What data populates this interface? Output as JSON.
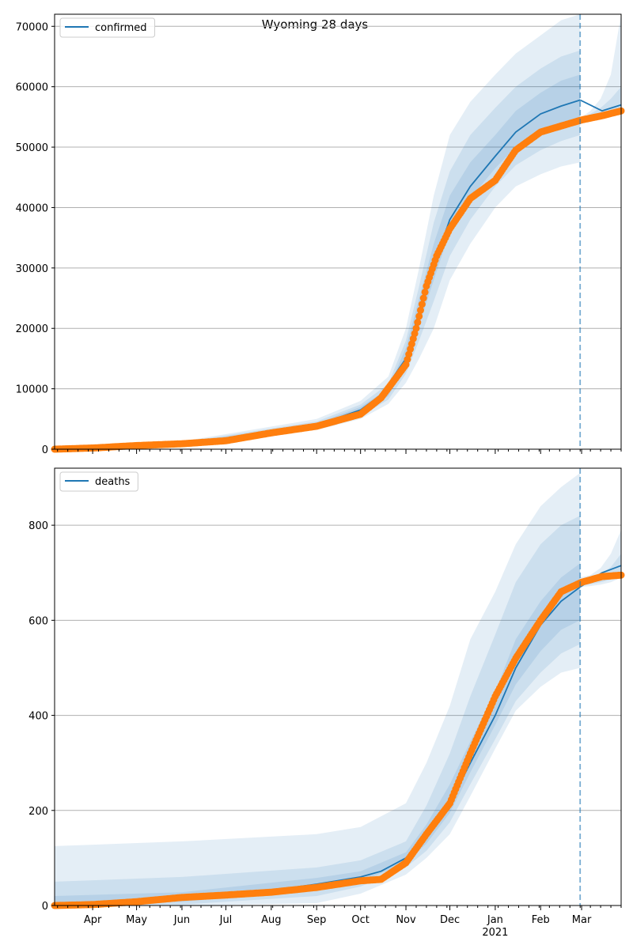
{
  "figure": {
    "title": "Wyoming 28 days"
  },
  "colors": {
    "model": "#1f77b4",
    "observed": "#ff7f0e",
    "band": "#1f77b4",
    "grid": "#b0b0b0",
    "forecast_line": "#1f77b4"
  },
  "x_axis": {
    "month_ticks": [
      {
        "label": "Apr",
        "date": "2020-04-01"
      },
      {
        "label": "May",
        "date": "2020-05-01"
      },
      {
        "label": "Jun",
        "date": "2020-06-01"
      },
      {
        "label": "Jul",
        "date": "2020-07-01"
      },
      {
        "label": "Aug",
        "date": "2020-08-01"
      },
      {
        "label": "Sep",
        "date": "2020-09-01"
      },
      {
        "label": "Oct",
        "date": "2020-10-01"
      },
      {
        "label": "Nov",
        "date": "2020-11-01"
      },
      {
        "label": "Dec",
        "date": "2020-12-01"
      },
      {
        "label": "Jan",
        "date": "2021-01-01"
      },
      {
        "label": "Feb",
        "date": "2021-02-01"
      },
      {
        "label": "Mar",
        "date": "2021-03-01"
      }
    ],
    "year_label": "2021"
  },
  "chart_data": [
    {
      "type": "line",
      "legend": "confirmed",
      "legend_position": "top-left",
      "grid": "horizontal",
      "xlim": [
        "2020-03-06",
        "2021-03-28"
      ],
      "ylim": [
        0,
        72000
      ],
      "yticks": [
        0,
        10000,
        20000,
        30000,
        40000,
        50000,
        60000,
        70000
      ],
      "forecast_start": "2021-02-28",
      "model": {
        "x": [
          "2020-03-06",
          "2020-04-01",
          "2020-05-01",
          "2020-06-01",
          "2020-07-01",
          "2020-08-01",
          "2020-09-01",
          "2020-10-01",
          "2020-10-15",
          "2020-11-01",
          "2020-11-15",
          "2020-12-01",
          "2020-12-15",
          "2021-01-01",
          "2021-01-15",
          "2021-02-01",
          "2021-02-15",
          "2021-02-28",
          "2021-03-15",
          "2021-03-28"
        ],
        "y": [
          0,
          200,
          600,
          900,
          1500,
          2800,
          4000,
          6500,
          9000,
          15000,
          27000,
          38000,
          43500,
          48500,
          52500,
          55500,
          56800,
          57800,
          56000,
          57000
        ]
      },
      "observed": {
        "x": [
          "2020-03-06",
          "2020-04-01",
          "2020-05-01",
          "2020-06-01",
          "2020-07-01",
          "2020-08-01",
          "2020-09-01",
          "2020-10-01",
          "2020-10-15",
          "2020-11-01",
          "2020-11-08",
          "2020-11-15",
          "2020-11-22",
          "2020-12-01",
          "2020-12-15",
          "2021-01-01",
          "2021-01-15",
          "2021-02-01",
          "2021-02-15",
          "2021-03-01",
          "2021-03-15",
          "2021-03-28"
        ],
        "y": [
          0,
          200,
          600,
          900,
          1400,
          2700,
          3800,
          5800,
          8500,
          14000,
          20000,
          27000,
          32000,
          36500,
          41500,
          44500,
          49500,
          52500,
          53500,
          54500,
          55200,
          56000
        ]
      },
      "bands": [
        {
          "x": [
            "2020-03-06",
            "2020-06-01",
            "2020-09-01",
            "2020-10-01",
            "2020-10-20",
            "2020-11-01",
            "2020-11-10",
            "2020-11-20",
            "2020-12-01",
            "2020-12-15",
            "2021-01-01",
            "2021-01-15",
            "2021-02-01",
            "2021-02-15",
            "2021-02-28"
          ],
          "lo": [
            0,
            500,
            3200,
            5000,
            7500,
            11000,
            15000,
            20000,
            28000,
            34000,
            40000,
            43500,
            45500,
            46800,
            47500
          ],
          "hi": [
            0,
            1300,
            5000,
            8000,
            12000,
            20000,
            30000,
            42000,
            52000,
            57500,
            62000,
            65500,
            68500,
            71000,
            72000
          ]
        },
        {
          "x": [
            "2020-03-06",
            "2020-06-01",
            "2020-09-01",
            "2020-10-01",
            "2020-10-20",
            "2020-11-01",
            "2020-11-10",
            "2020-11-20",
            "2020-12-01",
            "2020-12-15",
            "2021-01-01",
            "2021-01-15",
            "2021-02-01",
            "2021-02-15",
            "2021-02-28"
          ],
          "lo": [
            0,
            650,
            3500,
            5500,
            8200,
            12500,
            18000,
            24500,
            32000,
            38000,
            43500,
            47000,
            49500,
            51000,
            52000
          ],
          "hi": [
            0,
            1150,
            4600,
            7400,
            10800,
            18000,
            27000,
            37500,
            46000,
            52000,
            56500,
            60000,
            63000,
            65000,
            66000
          ]
        },
        {
          "x": [
            "2020-03-06",
            "2020-06-01",
            "2020-09-01",
            "2020-10-01",
            "2020-10-20",
            "2020-11-01",
            "2020-11-10",
            "2020-11-20",
            "2020-12-01",
            "2020-12-15",
            "2021-01-01",
            "2021-01-15",
            "2021-02-01",
            "2021-02-15",
            "2021-02-28"
          ],
          "lo": [
            0,
            780,
            3800,
            6000,
            8800,
            13800,
            20500,
            28000,
            36000,
            41500,
            46500,
            50000,
            52500,
            54000,
            54500
          ],
          "hi": [
            0,
            1020,
            4300,
            7000,
            10000,
            16800,
            25000,
            34000,
            42000,
            47500,
            52000,
            56000,
            59000,
            61000,
            62000
          ]
        }
      ],
      "forecast_bands": [
        {
          "x": [
            "2021-02-28",
            "2021-03-07",
            "2021-03-14",
            "2021-03-21",
            "2021-03-28"
          ],
          "lo": [
            54000,
            54400,
            55000,
            55400,
            55800
          ],
          "hi": [
            54800,
            56000,
            58000,
            62000,
            72000
          ]
        },
        {
          "x": [
            "2021-02-28",
            "2021-03-07",
            "2021-03-14",
            "2021-03-21",
            "2021-03-28"
          ],
          "lo": [
            54200,
            54600,
            55100,
            55600,
            56000
          ],
          "hi": [
            54700,
            55500,
            56500,
            58000,
            60000
          ]
        }
      ]
    },
    {
      "type": "line",
      "legend": "deaths",
      "legend_position": "top-left",
      "grid": "horizontal",
      "xlim": [
        "2020-03-06",
        "2021-03-28"
      ],
      "ylim": [
        0,
        920
      ],
      "yticks": [
        0,
        200,
        400,
        600,
        800
      ],
      "forecast_start": "2021-02-28",
      "model": {
        "x": [
          "2020-03-06",
          "2020-04-01",
          "2020-05-01",
          "2020-06-01",
          "2020-07-01",
          "2020-08-01",
          "2020-09-01",
          "2020-10-01",
          "2020-10-15",
          "2020-11-01",
          "2020-11-15",
          "2020-12-01",
          "2020-12-15",
          "2021-01-01",
          "2021-01-15",
          "2021-02-01",
          "2021-02-15",
          "2021-02-28",
          "2021-03-15",
          "2021-03-28"
        ],
        "y": [
          0,
          2,
          8,
          15,
          22,
          32,
          45,
          60,
          72,
          100,
          145,
          215,
          300,
          400,
          500,
          590,
          640,
          670,
          700,
          715
        ]
      },
      "observed": {
        "x": [
          "2020-03-06",
          "2020-04-01",
          "2020-05-01",
          "2020-06-01",
          "2020-07-01",
          "2020-08-01",
          "2020-09-01",
          "2020-10-01",
          "2020-10-15",
          "2020-11-01",
          "2020-11-15",
          "2020-12-01",
          "2020-12-15",
          "2021-01-01",
          "2021-01-15",
          "2021-02-01",
          "2021-02-15",
          "2021-03-01",
          "2021-03-15",
          "2021-03-28"
        ],
        "y": [
          0,
          2,
          8,
          17,
          22,
          28,
          38,
          52,
          55,
          90,
          150,
          215,
          320,
          440,
          520,
          600,
          660,
          680,
          692,
          695
        ]
      },
      "bands": [
        {
          "x": [
            "2020-03-06",
            "2020-06-01",
            "2020-09-01",
            "2020-10-01",
            "2020-11-01",
            "2020-11-15",
            "2020-12-01",
            "2020-12-15",
            "2021-01-01",
            "2021-01-15",
            "2021-02-01",
            "2021-02-15",
            "2021-02-28"
          ],
          "lo": [
            0,
            0,
            5,
            25,
            65,
            100,
            150,
            230,
            330,
            410,
            460,
            490,
            500
          ],
          "hi": [
            125,
            135,
            150,
            165,
            215,
            300,
            420,
            560,
            660,
            760,
            840,
            880,
            910
          ]
        },
        {
          "x": [
            "2020-03-06",
            "2020-06-01",
            "2020-09-01",
            "2020-10-01",
            "2020-11-01",
            "2020-11-15",
            "2020-12-01",
            "2020-12-15",
            "2021-01-01",
            "2021-01-15",
            "2021-02-01",
            "2021-02-15",
            "2021-02-28"
          ],
          "lo": [
            0,
            2,
            20,
            40,
            80,
            115,
            175,
            255,
            350,
            430,
            490,
            530,
            550
          ],
          "hi": [
            50,
            60,
            80,
            95,
            135,
            210,
            320,
            440,
            570,
            680,
            760,
            800,
            820
          ]
        },
        {
          "x": [
            "2020-03-06",
            "2020-06-01",
            "2020-09-01",
            "2020-10-01",
            "2020-11-01",
            "2020-11-15",
            "2020-12-01",
            "2020-12-15",
            "2021-01-01",
            "2021-01-15",
            "2021-02-01",
            "2021-02-15",
            "2021-02-28"
          ],
          "lo": [
            0,
            8,
            32,
            50,
            90,
            130,
            195,
            280,
            380,
            465,
            535,
            580,
            600
          ],
          "hi": [
            20,
            28,
            58,
            72,
            112,
            170,
            255,
            345,
            450,
            560,
            640,
            690,
            720
          ]
        }
      ],
      "forecast_bands": [
        {
          "x": [
            "2021-02-28",
            "2021-03-07",
            "2021-03-14",
            "2021-03-21",
            "2021-03-28"
          ],
          "lo": [
            670,
            672,
            675,
            680,
            690
          ],
          "hi": [
            690,
            695,
            710,
            740,
            790
          ]
        },
        {
          "x": [
            "2021-02-28",
            "2021-03-07",
            "2021-03-14",
            "2021-03-21",
            "2021-03-28"
          ],
          "lo": [
            672,
            676,
            680,
            686,
            694
          ],
          "hi": [
            684,
            688,
            698,
            712,
            740
          ]
        }
      ]
    }
  ]
}
